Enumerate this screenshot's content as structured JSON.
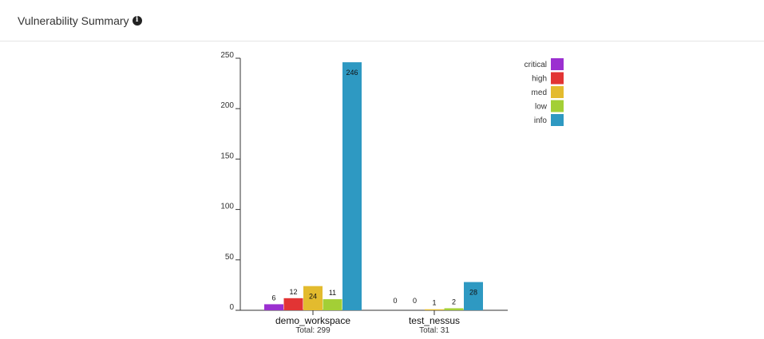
{
  "header": {
    "title": "Vulnerability Summary",
    "info_icon": "info-circle-icon"
  },
  "chart_data": {
    "type": "bar",
    "grouped": true,
    "categories": [
      "demo_workspace",
      "test_nessus"
    ],
    "totals": [
      "Total: 299",
      "Total: 31"
    ],
    "series": [
      {
        "name": "critical",
        "color": "#9b30d0",
        "values": [
          6,
          0
        ]
      },
      {
        "name": "high",
        "color": "#e23434",
        "values": [
          12,
          0
        ]
      },
      {
        "name": "med",
        "color": "#e3bb2e",
        "values": [
          24,
          1
        ]
      },
      {
        "name": "low",
        "color": "#a3cf36",
        "values": [
          11,
          2
        ]
      },
      {
        "name": "info",
        "color": "#2e99c2",
        "values": [
          246,
          28
        ]
      }
    ],
    "ylim": [
      0,
      250
    ],
    "yticks": [
      0,
      50,
      100,
      150,
      200,
      250
    ],
    "legend_position": "top-right",
    "grid": false
  }
}
